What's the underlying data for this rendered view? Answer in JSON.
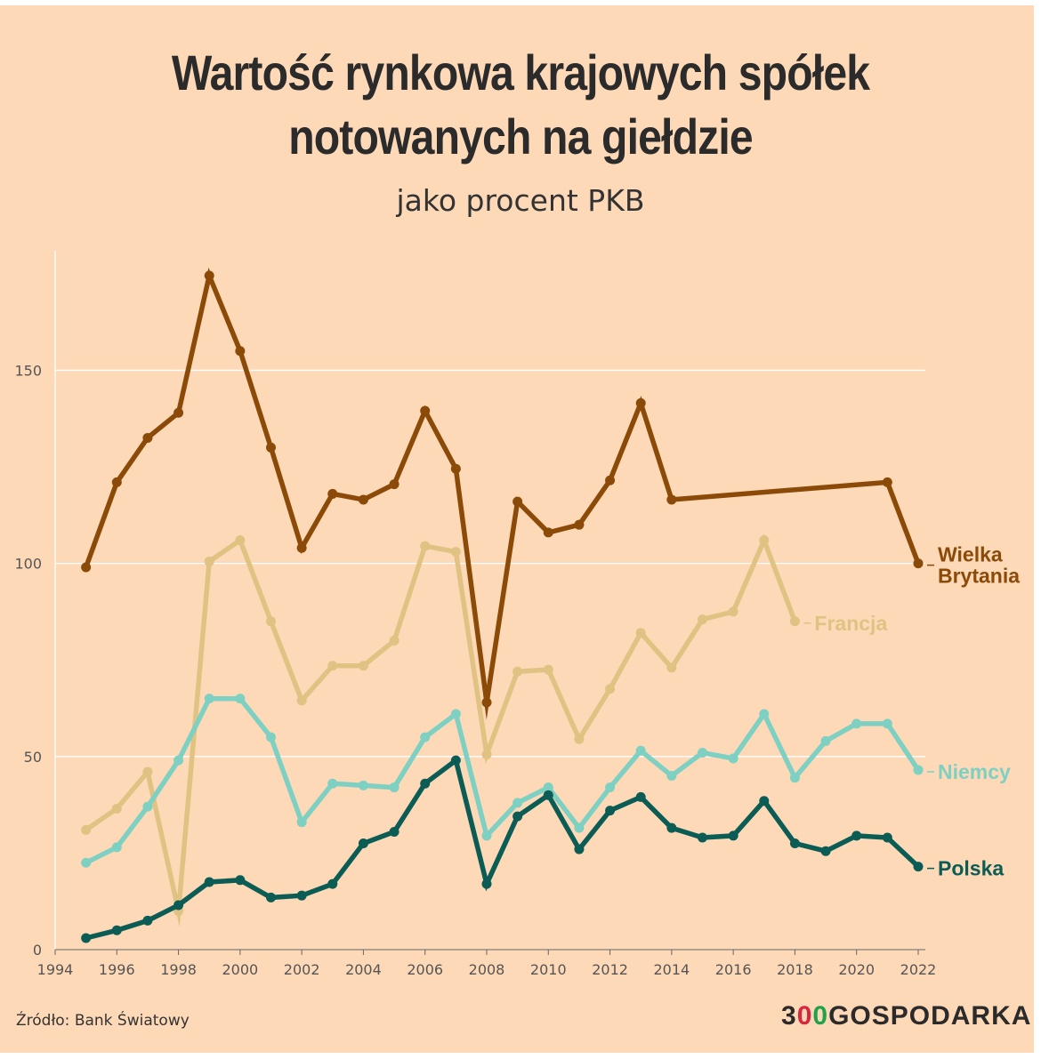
{
  "title_line1": "Wartość rynkowa krajowych spółek",
  "title_line2": "notowanych na giełdzie",
  "subtitle": "jako procent PKB",
  "source": "Źródło: Bank Światowy",
  "logo": {
    "prefix": "3",
    "o1": "0",
    "o2": "0",
    "suffix": "GOSPODARKA",
    "o1_color": "#d7263d",
    "o2_color": "#1fa34a"
  },
  "chart_data": {
    "type": "line",
    "xlim": [
      1994,
      2022
    ],
    "ylim": [
      0,
      175
    ],
    "xticks": [
      1994,
      1996,
      1998,
      2000,
      2002,
      2004,
      2006,
      2008,
      2010,
      2012,
      2014,
      2016,
      2018,
      2020,
      2022
    ],
    "yticks": [
      0,
      50,
      100,
      150
    ],
    "grid": true,
    "legend": "direct labels at line ends (right)",
    "series": [
      {
        "name": "Wielka Brytania",
        "label_lines": [
          "Wielka",
          "Brytania"
        ],
        "color": "#8b4a08",
        "x": [
          1995,
          1996,
          1997,
          1998,
          1999,
          2000,
          2001,
          2002,
          2003,
          2004,
          2005,
          2006,
          2007,
          2008,
          2009,
          2010,
          2011,
          2012,
          2013,
          2014,
          2021,
          2022
        ],
        "y": [
          99,
          121,
          132.5,
          139,
          174.5,
          155,
          130,
          104,
          118,
          116.5,
          120.5,
          139.5,
          124.5,
          64,
          116,
          108,
          110,
          121.5,
          141.5,
          116.5,
          121,
          100
        ]
      },
      {
        "name": "Francja",
        "label_lines": [
          "Francja"
        ],
        "color": "#e0c382",
        "x": [
          1995,
          1996,
          1997,
          1998,
          1999,
          2000,
          2001,
          2002,
          2003,
          2004,
          2005,
          2006,
          2007,
          2008,
          2009,
          2010,
          2011,
          2012,
          2013,
          2014,
          2015,
          2016,
          2017,
          2018
        ],
        "y": [
          31,
          36.5,
          46,
          10,
          100.5,
          106,
          85,
          64.5,
          73.5,
          73.5,
          80,
          104.5,
          103,
          50.5,
          72,
          72.5,
          54.5,
          67.5,
          82,
          73,
          85.5,
          87.5,
          106,
          85
        ]
      },
      {
        "name": "Niemcy",
        "label_lines": [
          "Niemcy"
        ],
        "color": "#7ed0c3",
        "x": [
          1995,
          1996,
          1997,
          1998,
          1999,
          2000,
          2001,
          2002,
          2003,
          2004,
          2005,
          2006,
          2007,
          2008,
          2009,
          2010,
          2011,
          2012,
          2013,
          2014,
          2015,
          2016,
          2017,
          2018,
          2019,
          2020,
          2021,
          2022
        ],
        "y": [
          22.5,
          26.5,
          37,
          49,
          65,
          65,
          55,
          33,
          43,
          42.5,
          42,
          55,
          61,
          29.5,
          38,
          42,
          31.5,
          42,
          51.5,
          45,
          51,
          49.5,
          61,
          44.5,
          54,
          58.5,
          58.5,
          46.5
        ]
      },
      {
        "name": "Polska",
        "label_lines": [
          "Polska"
        ],
        "color": "#0c5c56",
        "x": [
          1995,
          1996,
          1997,
          1998,
          1999,
          2000,
          2001,
          2002,
          2003,
          2004,
          2005,
          2006,
          2007,
          2008,
          2009,
          2010,
          2011,
          2012,
          2013,
          2014,
          2015,
          2016,
          2017,
          2018,
          2019,
          2020,
          2021,
          2022
        ],
        "y": [
          3,
          5,
          7.5,
          11.5,
          17.5,
          18,
          13.5,
          14,
          17,
          27.5,
          30.5,
          43,
          49,
          17,
          34.5,
          40,
          26,
          36,
          39.5,
          31.5,
          29,
          29.5,
          38.5,
          27.5,
          25.5,
          29.5,
          29,
          21.5
        ]
      }
    ]
  }
}
